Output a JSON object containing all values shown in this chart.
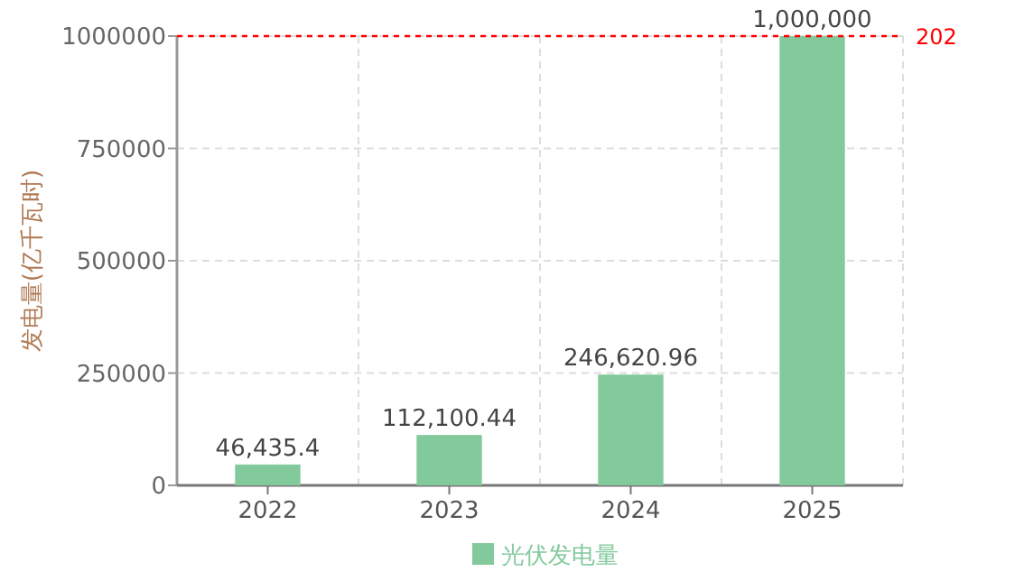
{
  "chart_data": {
    "type": "bar",
    "ylabel": "发电量(亿千瓦时)",
    "categories": [
      "2022",
      "2023",
      "2024",
      "2025"
    ],
    "series": [
      {
        "name": "光伏发电量",
        "color": "#82c99b",
        "values": [
          46435.4,
          112100.44,
          246620.96,
          1000000
        ],
        "value_labels": [
          "46,435.4",
          "112,100.44",
          "246,620.96",
          "1,000,000"
        ]
      }
    ],
    "ylim": [
      0,
      1000000
    ],
    "yticks": [
      0,
      250000,
      500000,
      750000,
      1000000
    ],
    "grid": true,
    "legend": "bottom",
    "ref_lines": [
      {
        "axis": "y",
        "value": 1000000,
        "color": "#ff0000",
        "line_style": "dotted"
      }
    ],
    "annotations": [
      "202"
    ]
  }
}
